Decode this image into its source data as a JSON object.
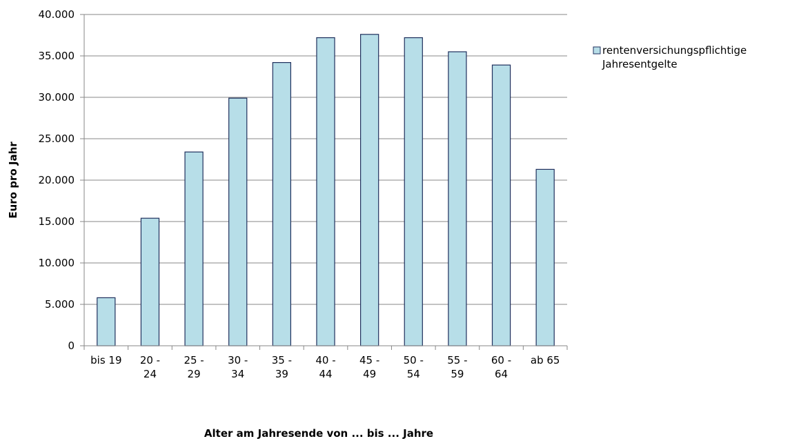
{
  "chart_data": {
    "type": "bar",
    "x_label": "Alter am Jahresende von ... bis ... Jahre",
    "y_label": "Euro pro Jahr",
    "categories": [
      "bis 19",
      "20 - 24",
      "25 - 29",
      "30 - 34",
      "35 - 39",
      "40 - 44",
      "45 - 49",
      "50 - 54",
      "55 - 59",
      "60 - 64",
      "ab 65"
    ],
    "series": [
      {
        "name": "rentenversichungspflichtige Jahresentgelte",
        "color": "#b7dee8",
        "values": [
          5800,
          15400,
          23400,
          29900,
          34200,
          37200,
          37600,
          37200,
          35500,
          33900,
          21300
        ]
      }
    ],
    "ylim": [
      0,
      40000
    ],
    "yticks": [
      0,
      {
        "value": 5000,
        "label": "5.000"
      },
      {
        "value": 10000,
        "label": "10.000"
      },
      {
        "value": 15000,
        "label": "15.000"
      },
      {
        "value": 20000,
        "label": "20.000"
      },
      {
        "value": 25000,
        "label": "25.000"
      },
      {
        "value": 30000,
        "label": "30.000"
      },
      {
        "value": 35000,
        "label": "35.000"
      },
      {
        "value": 40000,
        "label": "40.000"
      }
    ],
    "grid": true,
    "legend": "right"
  }
}
